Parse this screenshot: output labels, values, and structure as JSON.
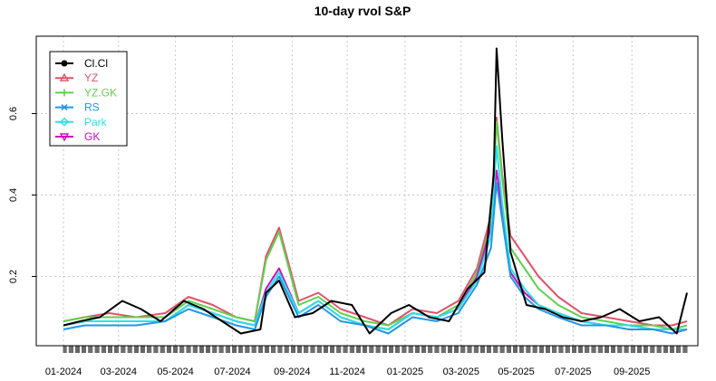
{
  "chart_data": {
    "type": "line",
    "title": "10-day rvol S&P",
    "xlabel": "",
    "ylabel": "",
    "x_range": [
      "2024-01-02",
      "2025-10-31"
    ],
    "ylim": [
      0.03,
      0.79
    ],
    "y_ticks": [
      0.2,
      0.4,
      0.6
    ],
    "y_tick_labels": [
      "0.2",
      "0.4",
      "0.6"
    ],
    "x_tick_labels": [
      "01-2024",
      "03-2024",
      "05-2024",
      "07-2024",
      "09-2024",
      "11-2024",
      "01-2025",
      "03-2025",
      "05-2025",
      "07-2025",
      "09-2025"
    ],
    "x_tick_dates": [
      "2024-01-02",
      "2024-03-01",
      "2024-05-01",
      "2024-07-01",
      "2024-09-03",
      "2024-11-01",
      "2025-01-02",
      "2025-03-03",
      "2025-05-01",
      "2025-07-01",
      "2025-09-02"
    ],
    "grid": true,
    "legend_position": "top-left",
    "series": [
      {
        "name": "Cl.Cl",
        "color": "#000000",
        "marker": "circle",
        "x": [
          "2024-01-02",
          "2024-01-20",
          "2024-02-10",
          "2024-03-05",
          "2024-03-25",
          "2024-04-15",
          "2024-05-10",
          "2024-05-31",
          "2024-06-20",
          "2024-07-10",
          "2024-07-31",
          "2024-08-06",
          "2024-08-20",
          "2024-09-06",
          "2024-09-25",
          "2024-10-15",
          "2024-11-06",
          "2024-11-25",
          "2024-12-18",
          "2025-01-06",
          "2025-01-28",
          "2025-02-18",
          "2025-03-10",
          "2025-03-28",
          "2025-04-07",
          "2025-04-10",
          "2025-04-16",
          "2025-04-25",
          "2025-05-12",
          "2025-06-01",
          "2025-06-20",
          "2025-07-10",
          "2025-07-31",
          "2025-08-20",
          "2025-09-10",
          "2025-10-01",
          "2025-10-20",
          "2025-10-31"
        ],
        "values": [
          0.08,
          0.09,
          0.1,
          0.14,
          0.12,
          0.09,
          0.14,
          0.12,
          0.09,
          0.06,
          0.07,
          0.16,
          0.19,
          0.1,
          0.11,
          0.14,
          0.13,
          0.06,
          0.11,
          0.13,
          0.1,
          0.09,
          0.17,
          0.21,
          0.45,
          0.76,
          0.54,
          0.26,
          0.13,
          0.12,
          0.1,
          0.09,
          0.1,
          0.12,
          0.09,
          0.1,
          0.06,
          0.16
        ]
      },
      {
        "name": "YZ",
        "color": "#DF536B",
        "marker": "triangle",
        "x": [
          "2024-01-02",
          "2024-01-25",
          "2024-02-20",
          "2024-03-20",
          "2024-04-20",
          "2024-05-15",
          "2024-06-10",
          "2024-07-05",
          "2024-07-25",
          "2024-08-06",
          "2024-08-20",
          "2024-09-10",
          "2024-10-01",
          "2024-10-25",
          "2024-11-20",
          "2024-12-15",
          "2025-01-10",
          "2025-02-05",
          "2025-02-28",
          "2025-03-20",
          "2025-04-04",
          "2025-04-10",
          "2025-04-16",
          "2025-04-25",
          "2025-05-10",
          "2025-05-25",
          "2025-06-15",
          "2025-07-10",
          "2025-08-05",
          "2025-08-30",
          "2025-09-25",
          "2025-10-15",
          "2025-10-31"
        ],
        "values": [
          0.09,
          0.1,
          0.11,
          0.1,
          0.11,
          0.15,
          0.13,
          0.1,
          0.09,
          0.25,
          0.32,
          0.14,
          0.16,
          0.12,
          0.1,
          0.08,
          0.12,
          0.11,
          0.14,
          0.22,
          0.35,
          0.59,
          0.45,
          0.3,
          0.25,
          0.2,
          0.15,
          0.11,
          0.1,
          0.09,
          0.08,
          0.08,
          0.09
        ]
      },
      {
        "name": "YZ.GK",
        "color": "#61D04F",
        "marker": "plus",
        "x": [
          "2024-01-02",
          "2024-01-25",
          "2024-02-20",
          "2024-03-20",
          "2024-04-20",
          "2024-05-15",
          "2024-06-10",
          "2024-07-05",
          "2024-07-25",
          "2024-08-06",
          "2024-08-20",
          "2024-09-10",
          "2024-10-01",
          "2024-10-25",
          "2024-11-20",
          "2024-12-15",
          "2025-01-10",
          "2025-02-05",
          "2025-02-28",
          "2025-03-20",
          "2025-04-04",
          "2025-04-10",
          "2025-04-16",
          "2025-04-25",
          "2025-05-10",
          "2025-05-25",
          "2025-06-15",
          "2025-07-10",
          "2025-08-05",
          "2025-08-30",
          "2025-09-25",
          "2025-10-15",
          "2025-10-31"
        ],
        "values": [
          0.09,
          0.1,
          0.1,
          0.1,
          0.1,
          0.14,
          0.12,
          0.1,
          0.09,
          0.24,
          0.31,
          0.13,
          0.15,
          0.11,
          0.09,
          0.08,
          0.11,
          0.1,
          0.13,
          0.21,
          0.33,
          0.58,
          0.44,
          0.27,
          0.22,
          0.17,
          0.13,
          0.1,
          0.09,
          0.08,
          0.08,
          0.07,
          0.08
        ]
      },
      {
        "name": "RS",
        "color": "#2297E6",
        "marker": "x",
        "x": [
          "2024-01-02",
          "2024-01-25",
          "2024-02-20",
          "2024-03-20",
          "2024-04-20",
          "2024-05-15",
          "2024-06-10",
          "2024-07-05",
          "2024-07-25",
          "2024-08-06",
          "2024-08-20",
          "2024-09-10",
          "2024-10-01",
          "2024-10-25",
          "2024-11-20",
          "2024-12-15",
          "2025-01-10",
          "2025-02-05",
          "2025-02-28",
          "2025-03-20",
          "2025-04-04",
          "2025-04-10",
          "2025-04-16",
          "2025-04-25",
          "2025-05-10",
          "2025-05-25",
          "2025-06-15",
          "2025-07-10",
          "2025-08-05",
          "2025-08-30",
          "2025-09-25",
          "2025-10-15",
          "2025-10-31"
        ],
        "values": [
          0.07,
          0.08,
          0.08,
          0.08,
          0.09,
          0.12,
          0.1,
          0.08,
          0.07,
          0.15,
          0.2,
          0.1,
          0.13,
          0.09,
          0.08,
          0.06,
          0.1,
          0.09,
          0.11,
          0.18,
          0.27,
          0.43,
          0.34,
          0.2,
          0.15,
          0.12,
          0.1,
          0.08,
          0.08,
          0.07,
          0.07,
          0.06,
          0.07
        ]
      },
      {
        "name": "Park",
        "color": "#28E2E5",
        "marker": "diamond",
        "x": [
          "2024-01-02",
          "2024-01-25",
          "2024-02-20",
          "2024-03-20",
          "2024-04-20",
          "2024-05-15",
          "2024-06-10",
          "2024-07-05",
          "2024-07-25",
          "2024-08-06",
          "2024-08-20",
          "2024-09-10",
          "2024-10-01",
          "2024-10-25",
          "2024-11-20",
          "2024-12-15",
          "2025-01-10",
          "2025-02-05",
          "2025-02-28",
          "2025-03-20",
          "2025-04-04",
          "2025-04-10",
          "2025-04-16",
          "2025-04-25",
          "2025-05-10",
          "2025-05-25",
          "2025-06-15",
          "2025-07-10",
          "2025-08-05",
          "2025-08-30",
          "2025-09-25",
          "2025-10-15",
          "2025-10-31"
        ],
        "values": [
          0.08,
          0.09,
          0.09,
          0.09,
          0.09,
          0.13,
          0.11,
          0.09,
          0.08,
          0.16,
          0.21,
          0.11,
          0.14,
          0.1,
          0.08,
          0.07,
          0.11,
          0.1,
          0.12,
          0.19,
          0.3,
          0.52,
          0.38,
          0.22,
          0.17,
          0.13,
          0.11,
          0.09,
          0.08,
          0.08,
          0.07,
          0.07,
          0.07
        ]
      },
      {
        "name": "GK",
        "color": "#CD0BBC",
        "marker": "triangle-down",
        "x": [
          "2024-01-02",
          "2024-01-25",
          "2024-02-20",
          "2024-03-20",
          "2024-04-20",
          "2024-05-15",
          "2024-06-10",
          "2024-07-05",
          "2024-07-25",
          "2024-08-06",
          "2024-08-20",
          "2024-09-10",
          "2024-10-01",
          "2024-10-25",
          "2024-11-20",
          "2024-12-15",
          "2025-01-10",
          "2025-02-05",
          "2025-02-28",
          "2025-03-20",
          "2025-04-04",
          "2025-04-10",
          "2025-04-16",
          "2025-04-25",
          "2025-05-10",
          "2025-05-25",
          "2025-06-15",
          "2025-07-10",
          "2025-08-05",
          "2025-08-30",
          "2025-09-25",
          "2025-10-15",
          "2025-10-31"
        ],
        "values": [
          0.08,
          0.09,
          0.09,
          0.09,
          0.09,
          0.13,
          0.11,
          0.09,
          0.08,
          0.17,
          0.22,
          0.11,
          0.14,
          0.1,
          0.08,
          0.07,
          0.11,
          0.1,
          0.12,
          0.2,
          0.32,
          0.46,
          0.36,
          0.21,
          0.16,
          0.13,
          0.11,
          0.09,
          0.08,
          0.08,
          0.07,
          0.07,
          0.07
        ]
      }
    ]
  }
}
